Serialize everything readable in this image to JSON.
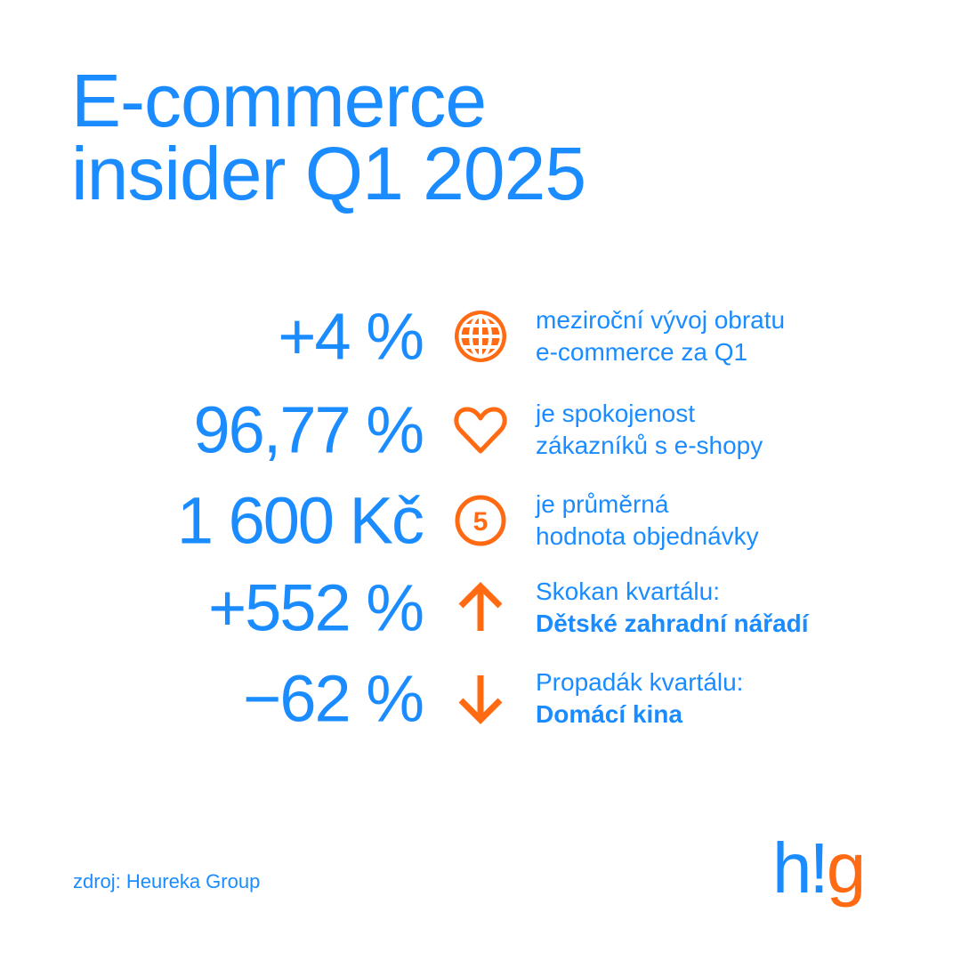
{
  "title": {
    "line1": "E-commerce",
    "line2": "insider Q1 2025"
  },
  "colors": {
    "primary": "#1a8cff",
    "accent": "#ff6a13"
  },
  "stats": [
    {
      "value": "+4 %",
      "icon": "globe-icon",
      "line1": "meziroční vývoj obratu",
      "line2": "e-commerce za Q1"
    },
    {
      "value": "96,77 %",
      "icon": "heart-icon",
      "line1": "je spokojenost",
      "line2": "zákazníků s e-shopy"
    },
    {
      "value": "1 600 Kč",
      "icon": "five-coin-icon",
      "icon_text": "5",
      "line1": "je průměrná",
      "line2": "hodnota objednávky"
    },
    {
      "value": "+552 %",
      "icon": "arrow-up-icon",
      "line1": "Skokan kvartálu:",
      "line2": "Dětské zahradní nářadí"
    },
    {
      "value": "−62 %",
      "icon": "arrow-down-icon",
      "line1": "Propadák kvartálu:",
      "line2": "Domácí kina"
    }
  ],
  "source": "zdroj: Heureka Group",
  "logo": {
    "h": "h",
    "excl": "!",
    "g": "g"
  }
}
